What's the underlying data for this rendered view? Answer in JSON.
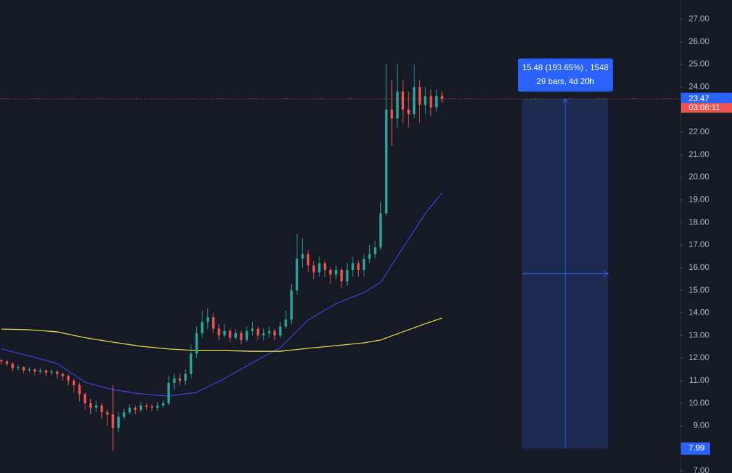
{
  "chart_data": {
    "type": "candlestick",
    "up_color": "#26a69a",
    "down_color": "#ef5350",
    "ylim": [
      6.91,
      27.85
    ],
    "yticks": [
      {
        "value": 7,
        "label": "7.00"
      },
      {
        "value": 9,
        "label": "9.00"
      },
      {
        "value": 10,
        "label": "10.00"
      },
      {
        "value": 11,
        "label": "11.00"
      },
      {
        "value": 12,
        "label": "12.00"
      },
      {
        "value": 13,
        "label": "13.00"
      },
      {
        "value": 14,
        "label": "14.00"
      },
      {
        "value": 15,
        "label": "15.00"
      },
      {
        "value": 16,
        "label": "16.00"
      },
      {
        "value": 17,
        "label": "17.00"
      },
      {
        "value": 18,
        "label": "18.00"
      },
      {
        "value": 19,
        "label": "19.00"
      },
      {
        "value": 20,
        "label": "20.00"
      },
      {
        "value": 21,
        "label": "21.00"
      },
      {
        "value": 22,
        "label": "22.00"
      },
      {
        "value": 24,
        "label": "24.00"
      },
      {
        "value": 25,
        "label": "25.00"
      },
      {
        "value": 26,
        "label": "26.00"
      },
      {
        "value": 27,
        "label": "27.00"
      }
    ],
    "open": [
      11.9,
      11.85,
      11.75,
      11.55,
      11.6,
      11.45,
      11.5,
      11.4,
      11.45,
      11.35,
      11.4,
      11.3,
      11.2,
      11.0,
      10.8,
      10.4,
      10.0,
      9.8,
      9.9,
      9.6,
      9.5,
      8.9,
      9.4,
      9.6,
      9.8,
      9.7,
      9.9,
      9.85,
      9.8,
      9.9,
      10.0,
      10.9,
      11.1,
      11.0,
      11.3,
      12.2,
      13.1,
      13.6,
      13.8,
      13.3,
      13.0,
      13.2,
      12.9,
      13.1,
      12.8,
      13.2,
      13.3,
      13.0,
      13.1,
      13.2,
      13.0,
      13.4,
      13.7,
      15.0,
      16.4,
      16.6,
      16.1,
      15.8,
      16.2,
      15.9,
      15.7,
      15.9,
      15.4,
      15.9,
      16.2,
      15.9,
      16.4,
      16.6,
      16.9,
      18.4,
      23.0,
      22.6,
      23.8,
      23.0,
      22.8,
      24.0,
      23.2,
      23.6,
      23.1,
      23.6
    ],
    "high": [
      11.95,
      11.9,
      11.8,
      11.7,
      11.65,
      11.6,
      11.55,
      11.55,
      11.5,
      11.5,
      11.45,
      11.35,
      11.3,
      11.1,
      10.9,
      10.5,
      10.2,
      10.1,
      10.0,
      9.7,
      10.8,
      9.6,
      9.75,
      9.95,
      9.9,
      10.05,
      10.0,
      9.95,
      10.05,
      10.15,
      11.2,
      11.3,
      11.3,
      11.5,
      12.6,
      13.4,
      14.1,
      14.2,
      14.0,
      13.5,
      13.5,
      13.3,
      13.3,
      13.2,
      13.4,
      13.6,
      13.4,
      13.3,
      13.4,
      13.3,
      13.6,
      14.1,
      15.3,
      17.5,
      17.3,
      16.8,
      16.3,
      16.5,
      16.3,
      16.0,
      16.1,
      16.0,
      16.2,
      16.5,
      16.3,
      16.6,
      17.0,
      17.2,
      18.9,
      25.0,
      24.3,
      25.0,
      24.3,
      23.8,
      25.0,
      24.3,
      24.0,
      23.9,
      23.9,
      23.8
    ],
    "low": [
      11.7,
      11.65,
      11.4,
      11.45,
      11.3,
      11.35,
      11.25,
      11.3,
      11.2,
      11.25,
      11.1,
      11.0,
      10.8,
      10.5,
      10.1,
      9.7,
      9.5,
      9.6,
      9.3,
      9.0,
      7.9,
      8.7,
      9.3,
      9.5,
      9.5,
      9.6,
      9.7,
      9.65,
      9.65,
      9.8,
      9.9,
      10.6,
      10.8,
      10.8,
      11.1,
      12.0,
      12.9,
      13.3,
      13.1,
      12.8,
      12.9,
      12.7,
      12.8,
      12.6,
      12.7,
      13.0,
      12.8,
      12.8,
      12.9,
      12.8,
      12.9,
      13.3,
      13.5,
      14.8,
      16.0,
      15.8,
      15.5,
      15.6,
      15.6,
      15.3,
      15.5,
      15.1,
      15.2,
      15.6,
      15.6,
      15.6,
      16.2,
      16.4,
      16.8,
      18.3,
      21.4,
      22.2,
      22.4,
      22.2,
      22.6,
      22.4,
      22.8,
      22.7,
      22.9,
      23.3
    ],
    "close": [
      11.85,
      11.75,
      11.55,
      11.6,
      11.45,
      11.5,
      11.4,
      11.45,
      11.35,
      11.4,
      11.3,
      11.2,
      11.0,
      10.8,
      10.4,
      10.0,
      9.8,
      9.9,
      9.6,
      9.5,
      8.9,
      9.4,
      9.6,
      9.8,
      9.7,
      9.9,
      9.85,
      9.8,
      9.9,
      10.0,
      10.9,
      11.1,
      11.0,
      11.3,
      12.2,
      13.1,
      13.6,
      13.8,
      13.3,
      13.0,
      13.2,
      12.9,
      13.1,
      12.8,
      13.2,
      13.3,
      13.0,
      13.1,
      13.2,
      13.0,
      13.4,
      13.7,
      15.0,
      16.4,
      16.6,
      16.1,
      15.8,
      16.2,
      15.9,
      15.7,
      15.9,
      15.4,
      15.9,
      16.2,
      15.9,
      16.4,
      16.6,
      16.9,
      18.4,
      23.0,
      22.6,
      23.8,
      23.0,
      22.8,
      24.0,
      23.2,
      23.6,
      23.1,
      23.6,
      23.47
    ],
    "series": [
      {
        "color": "#3f3fd8",
        "x": [
          0,
          5,
          10,
          15,
          20,
          25,
          30,
          35,
          40,
          45,
          50,
          55,
          60,
          65,
          68,
          72,
          76,
          79
        ],
        "values": [
          12.4,
          12.09,
          11.76,
          10.93,
          10.6,
          10.41,
          10.32,
          10.48,
          11.09,
          11.79,
          12.46,
          13.68,
          14.41,
          14.9,
          15.35,
          16.88,
          18.4,
          19.32
        ]
      },
      {
        "color": "#e5d84a",
        "x": [
          0,
          5,
          10,
          15,
          20,
          25,
          30,
          35,
          40,
          45,
          50,
          55,
          60,
          65,
          68,
          72,
          76,
          79
        ],
        "values": [
          13.28,
          13.25,
          13.16,
          12.9,
          12.7,
          12.52,
          12.4,
          12.33,
          12.33,
          12.3,
          12.3,
          12.43,
          12.55,
          12.67,
          12.8,
          13.16,
          13.52,
          13.77
        ]
      }
    ],
    "last_price": 23.47,
    "countdown": "03:08:11",
    "measure": {
      "top": 23.47,
      "bottom": 7.99,
      "line1": "15.48 (193.65%) , 1548",
      "line2": "29 bars, 4d 20h"
    }
  }
}
